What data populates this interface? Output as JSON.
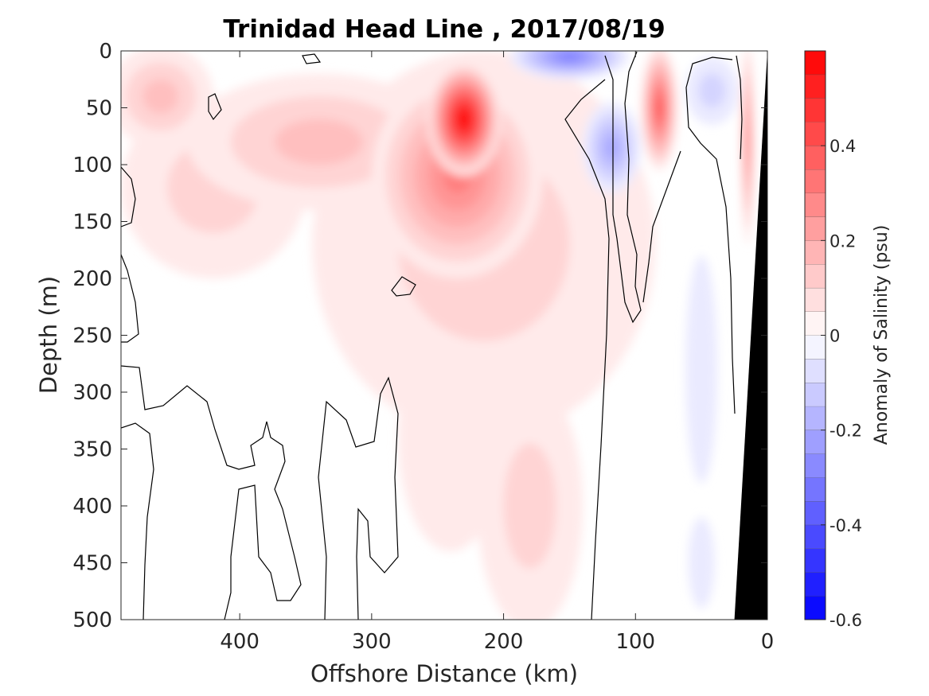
{
  "chart_data": {
    "type": "heatmap",
    "title": "Trinidad Head Line , 2017/08/19",
    "xlabel": "Offshore Distance (km)",
    "ylabel": "Depth (m)",
    "xlim": [
      490,
      0
    ],
    "ylim": [
      0,
      500
    ],
    "x_reversed": true,
    "y_reversed": true,
    "x_ticks": [
      "400",
      "300",
      "200",
      "100",
      "0"
    ],
    "x_tick_values": [
      400,
      300,
      200,
      100,
      0
    ],
    "y_ticks": [
      "0",
      "50",
      "100",
      "150",
      "200",
      "250",
      "300",
      "350",
      "400",
      "450",
      "500"
    ],
    "y_tick_values": [
      0,
      50,
      100,
      150,
      200,
      250,
      300,
      350,
      400,
      450,
      500
    ],
    "colorbar": {
      "label": "Anomaly of Salinity (psu)",
      "range": [
        -0.6,
        0.6
      ],
      "step": 0.05,
      "ticks": [
        "0.4",
        "0.2",
        "0",
        "-0.2",
        "-0.4",
        "-0.6"
      ],
      "tick_values": [
        0.4,
        0.2,
        0,
        -0.2,
        -0.4,
        -0.6
      ]
    },
    "features": [
      {
        "x": 230,
        "depth": 60,
        "rx": 28,
        "rd": 50,
        "value": 0.6
      },
      {
        "x": 235,
        "depth": 110,
        "rx": 65,
        "rd": 90,
        "value": 0.3
      },
      {
        "x": 215,
        "depth": 170,
        "rx": 130,
        "rd": 170,
        "value": 0.1
      },
      {
        "x": 340,
        "depth": 80,
        "rx": 100,
        "rd": 60,
        "value": 0.15
      },
      {
        "x": 420,
        "depth": 120,
        "rx": 70,
        "rd": 80,
        "value": 0.08
      },
      {
        "x": 460,
        "depth": 40,
        "rx": 40,
        "rd": 45,
        "value": 0.15
      },
      {
        "x": 180,
        "depth": 400,
        "rx": 40,
        "rd": 110,
        "value": 0.08
      },
      {
        "x": 240,
        "depth": 340,
        "rx": 40,
        "rd": 100,
        "value": 0.07
      },
      {
        "x": 82,
        "depth": 50,
        "rx": 14,
        "rd": 55,
        "value": 0.4
      },
      {
        "x": 150,
        "depth": 5,
        "rx": 45,
        "rd": 20,
        "value": -0.3
      },
      {
        "x": 118,
        "depth": 85,
        "rx": 22,
        "rd": 40,
        "value": -0.2
      },
      {
        "x": 42,
        "depth": 35,
        "rx": 20,
        "rd": 30,
        "value": -0.12
      },
      {
        "x": 50,
        "depth": 280,
        "rx": 12,
        "rd": 100,
        "value": -0.06
      },
      {
        "x": 50,
        "depth": 450,
        "rx": 10,
        "rd": 40,
        "value": -0.06
      },
      {
        "x": 15,
        "depth": 80,
        "rx": 5,
        "rd": 90,
        "value": 0.3
      }
    ],
    "bathymetry": {
      "fill": "#000000",
      "shelf_x_at_surface": 0,
      "shelf_x_at_500m": 25
    }
  }
}
